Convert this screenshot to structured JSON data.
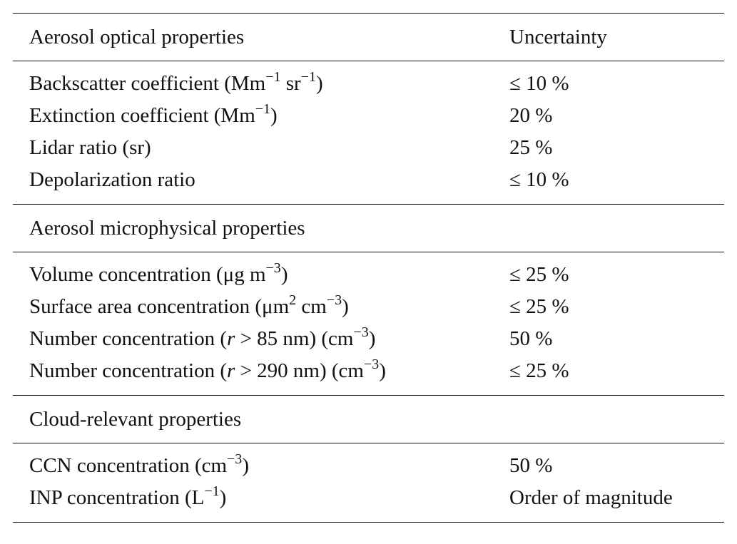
{
  "header": {
    "col1": "Aerosol optical properties",
    "col2": "Uncertainty"
  },
  "optical": [
    {
      "label": "Backscatter coefficient (Mm",
      "sup1": "−1",
      "mid": " sr",
      "sup2": "−1",
      "tail": ")",
      "value": "≤ 10 %"
    },
    {
      "label": "Extinction coefficient (Mm",
      "sup1": "−1",
      "tail": ")",
      "value": "20 %"
    },
    {
      "label": "Lidar ratio (sr)",
      "value": "25 %"
    },
    {
      "label": "Depolarization ratio",
      "value": "≤ 10 %"
    }
  ],
  "microphysical_head": "Aerosol microphysical properties",
  "microphysical": [
    {
      "label": "Volume concentration (μg m",
      "sup1": "−3",
      "tail": ")",
      "value": "≤ 25 %"
    },
    {
      "label": "Surface area concentration (μm",
      "sup1": "2",
      "mid": " cm",
      "sup2": "−3",
      "tail": ")",
      "value": "≤ 25 %"
    },
    {
      "pre": "Number concentration (",
      "ital": "r",
      "label": " > 85 nm) (cm",
      "sup1": "−3",
      "tail": ")",
      "value": "50 %"
    },
    {
      "pre": "Number concentration (",
      "ital": "r",
      "label": " > 290 nm) (cm",
      "sup1": "−3",
      "tail": ")",
      "value": "≤ 25 %"
    }
  ],
  "cloud_head": "Cloud-relevant properties",
  "cloud": [
    {
      "label": "CCN concentration (cm",
      "sup1": "−3",
      "tail": ")",
      "value": "50 %"
    },
    {
      "label": "INP concentration (L",
      "sup1": "−1",
      "tail": ")",
      "value": "Order of magnitude"
    }
  ]
}
